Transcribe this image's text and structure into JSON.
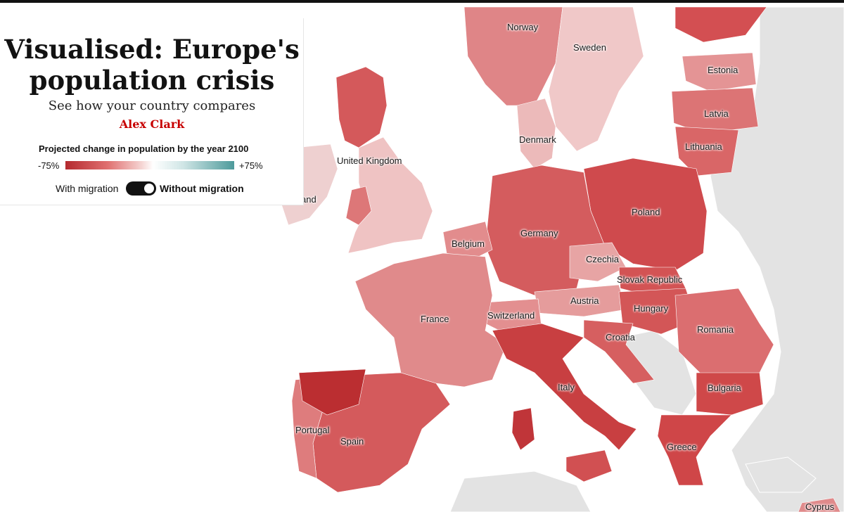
{
  "header": {
    "title_line1": "Visualised: Europe's",
    "title_line2": "population crisis",
    "subtitle": "See how your country compares",
    "byline": "Alex Clark"
  },
  "legend": {
    "title": "Projected change in population by the year 2100",
    "min_label": "-75%",
    "max_label": "+75%",
    "color_low": "#b42a2f",
    "color_mid": "#ffffff",
    "color_high": "#4d9a9b"
  },
  "toggle": {
    "left_label": "With migration",
    "right_label": "Without migration",
    "state": "Without migration"
  },
  "countries": {
    "norway": "Norway",
    "sweden": "Sweden",
    "estonia": "Estonia",
    "latvia": "Latvia",
    "lithuania": "Lithuania",
    "denmark": "Denmark",
    "united_kingdom": "United Kingdom",
    "ireland": "Ireland",
    "poland": "Poland",
    "germany": "Germany",
    "belgium": "Belgium",
    "czechia": "Czechia",
    "slovak_republic": "Slovak Republic",
    "austria": "Austria",
    "hungary": "Hungary",
    "switzerland": "Switzerland",
    "france": "France",
    "romania": "Romania",
    "croatia": "Croatia",
    "italy": "Italy",
    "bulgaria": "Bulgaria",
    "portugal": "Portugal",
    "spain": "Spain",
    "greece": "Greece",
    "cyprus": "Cyprus"
  },
  "colors": {
    "land_other": "#e4e4e4",
    "sea": "#ffffff",
    "dark_red": "#c0393c",
    "mid_red": "#d45a5c",
    "light_red": "#e6a1a1",
    "pale_red": "#f1c9c8"
  }
}
